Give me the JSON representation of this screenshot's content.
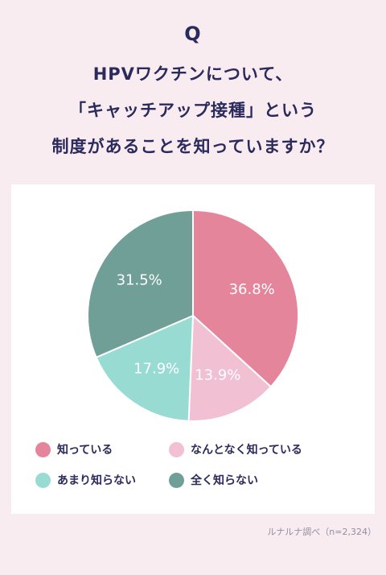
{
  "question_mark": "Q",
  "title_lines": [
    "HPVワクチンについて、",
    "「キャッチアップ接種」という",
    "制度があることを知っていますか？"
  ],
  "chart_data": {
    "type": "pie",
    "slices": [
      {
        "label": "知っている",
        "value": 36.8,
        "value_label": "36.8%",
        "color": "#e5859b"
      },
      {
        "label": "なんとなく知っている",
        "value": 13.9,
        "value_label": "13.9%",
        "color": "#f1c0d3"
      },
      {
        "label": "あまり知らない",
        "value": 17.9,
        "value_label": "17.9%",
        "color": "#98dbd3"
      },
      {
        "label": "全く知らない",
        "value": 31.5,
        "value_label": "31.5%",
        "color": "#6f9f96"
      }
    ],
    "start_angle": "12 o'clock",
    "direction": "clockwise",
    "legend_position": "bottom"
  },
  "source_note": "ルナルナ調べ（n=2,324）"
}
